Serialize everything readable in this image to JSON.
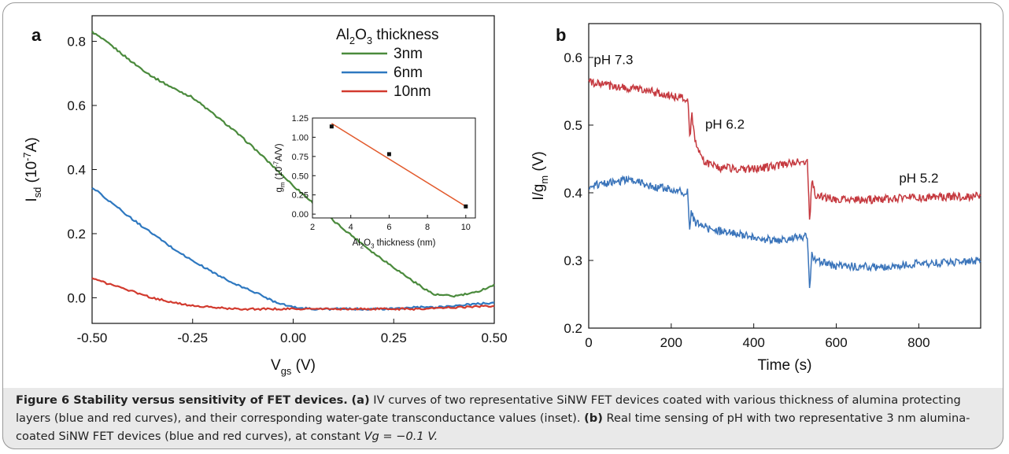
{
  "panel_a": {
    "label": "a",
    "legend_title": "Al2O3 thickness",
    "chart_data": {
      "type": "line",
      "xlabel": "Vgs (V)",
      "ylabel": "Isd (10-7A)",
      "xlim": [
        -0.5,
        0.5
      ],
      "ylim": [
        -0.08,
        0.88
      ],
      "xticks": [
        "-0.50",
        "-0.25",
        "0.00",
        "0.25",
        "0.50"
      ],
      "xtick_values": [
        -0.5,
        -0.25,
        0,
        0.25,
        0.5
      ],
      "yticks": [
        "0.0",
        "0.2",
        "0.4",
        "0.6",
        "0.8"
      ],
      "ytick_values": [
        0,
        0.2,
        0.4,
        0.6,
        0.8
      ],
      "legend": "top-right",
      "series": [
        {
          "name": "3nm",
          "color": "#4a8a3c",
          "x": [
            -0.5,
            -0.45,
            -0.4,
            -0.35,
            -0.3,
            -0.25,
            -0.2,
            -0.15,
            -0.1,
            -0.05,
            0,
            0.05,
            0.1,
            0.15,
            0.2,
            0.25,
            0.3,
            0.35,
            0.4,
            0.45,
            0.5
          ],
          "y": [
            0.83,
            0.785,
            0.735,
            0.69,
            0.655,
            0.625,
            0.575,
            0.525,
            0.47,
            0.41,
            0.35,
            0.295,
            0.24,
            0.19,
            0.14,
            0.095,
            0.05,
            0.01,
            0.005,
            0.015,
            0.04
          ]
        },
        {
          "name": "6nm",
          "color": "#2e78c0",
          "x": [
            -0.5,
            -0.45,
            -0.4,
            -0.35,
            -0.3,
            -0.25,
            -0.2,
            -0.15,
            -0.1,
            -0.05,
            0,
            0.05,
            0.1,
            0.15,
            0.2,
            0.25,
            0.3,
            0.35,
            0.4,
            0.45,
            0.5
          ],
          "y": [
            0.345,
            0.295,
            0.245,
            0.2,
            0.155,
            0.115,
            0.08,
            0.045,
            0.02,
            -0.01,
            -0.03,
            -0.035,
            -0.035,
            -0.035,
            -0.035,
            -0.035,
            -0.03,
            -0.03,
            -0.025,
            -0.02,
            -0.015
          ]
        },
        {
          "name": "10nm",
          "color": "#d23a2e",
          "x": [
            -0.5,
            -0.45,
            -0.4,
            -0.35,
            -0.3,
            -0.25,
            -0.2,
            -0.15,
            -0.1,
            -0.05,
            0,
            0.05,
            0.1,
            0.15,
            0.2,
            0.25,
            0.3,
            0.35,
            0.4,
            0.45,
            0.5
          ],
          "y": [
            0.06,
            0.04,
            0.02,
            0.0,
            -0.015,
            -0.025,
            -0.03,
            -0.035,
            -0.035,
            -0.035,
            -0.035,
            -0.035,
            -0.035,
            -0.035,
            -0.035,
            -0.035,
            -0.035,
            -0.033,
            -0.03,
            -0.028,
            -0.025
          ]
        }
      ]
    },
    "inset": {
      "xlabel": "Al2O3 thickness (nm)",
      "ylabel": "gm (10-7A/V)",
      "xlim": [
        2,
        10.5
      ],
      "ylim": [
        -0.05,
        1.25
      ],
      "xticks": [
        "2",
        "4",
        "6",
        "8",
        "10"
      ],
      "xtick_values": [
        2,
        4,
        6,
        8,
        10
      ],
      "yticks": [
        "0.00",
        "0.25",
        "0.50",
        "0.75",
        "1.00",
        "1.25"
      ],
      "ytick_values": [
        0,
        0.25,
        0.5,
        0.75,
        1.0,
        1.25
      ],
      "points": {
        "x": [
          3,
          6,
          10
        ],
        "y": [
          1.14,
          0.78,
          0.1
        ]
      },
      "fit": {
        "x": [
          3,
          10
        ],
        "y": [
          1.18,
          0.1
        ],
        "color": "#e2592b"
      }
    }
  },
  "panel_b": {
    "label": "b",
    "chart_data": {
      "type": "line",
      "xlabel": "Time (s)",
      "ylabel": "I/gm (V)",
      "xlim": [
        0,
        950
      ],
      "ylim": [
        0.2,
        0.65
      ],
      "xticks": [
        "0",
        "200",
        "400",
        "600",
        "800"
      ],
      "xtick_values": [
        0,
        200,
        400,
        600,
        800
      ],
      "yticks": [
        "0.2",
        "0.3",
        "0.4",
        "0.5",
        "0.6"
      ],
      "ytick_values": [
        0.2,
        0.3,
        0.4,
        0.5,
        0.6
      ],
      "annotations": [
        {
          "text": "pH 7.3",
          "x": 60,
          "y": 0.59
        },
        {
          "text": "pH 6.2",
          "x": 330,
          "y": 0.495
        },
        {
          "text": "pH 5.2",
          "x": 800,
          "y": 0.415
        }
      ],
      "series": [
        {
          "name": "",
          "color": "#c5393f",
          "x": [
            0,
            50,
            100,
            150,
            200,
            240,
            245,
            250,
            260,
            280,
            320,
            400,
            460,
            500,
            530,
            536,
            540,
            550,
            600,
            700,
            800,
            900,
            950
          ],
          "y": [
            0.563,
            0.558,
            0.555,
            0.55,
            0.543,
            0.538,
            0.48,
            0.515,
            0.47,
            0.445,
            0.437,
            0.435,
            0.44,
            0.445,
            0.447,
            0.35,
            0.42,
            0.395,
            0.39,
            0.39,
            0.393,
            0.394,
            0.395
          ]
        },
        {
          "name": "",
          "color": "#3a74ba",
          "x": [
            0,
            50,
            100,
            150,
            200,
            240,
            244,
            248,
            260,
            300,
            400,
            460,
            500,
            530,
            536,
            540,
            550,
            600,
            700,
            800,
            900,
            950
          ],
          "y": [
            0.41,
            0.415,
            0.42,
            0.41,
            0.405,
            0.4,
            0.345,
            0.37,
            0.355,
            0.345,
            0.335,
            0.328,
            0.333,
            0.335,
            0.255,
            0.31,
            0.3,
            0.292,
            0.29,
            0.295,
            0.297,
            0.3
          ]
        }
      ]
    }
  },
  "caption": {
    "title": "Figure 6 Stability versus sensitivity of FET devices.",
    "label_a": "(a)",
    "text_a": " IV curves of two representative SiNW FET devices coated with various thickness of alumina protecting layers (blue and red curves), and their corresponding water-gate transconductance values (inset). ",
    "label_b": "(b)",
    "text_b": " Real time sensing of pH with two representative 3 nm alumina-coated SiNW FET devices (blue and red curves), at constant ",
    "vg": "Vg = −0.1 V."
  }
}
